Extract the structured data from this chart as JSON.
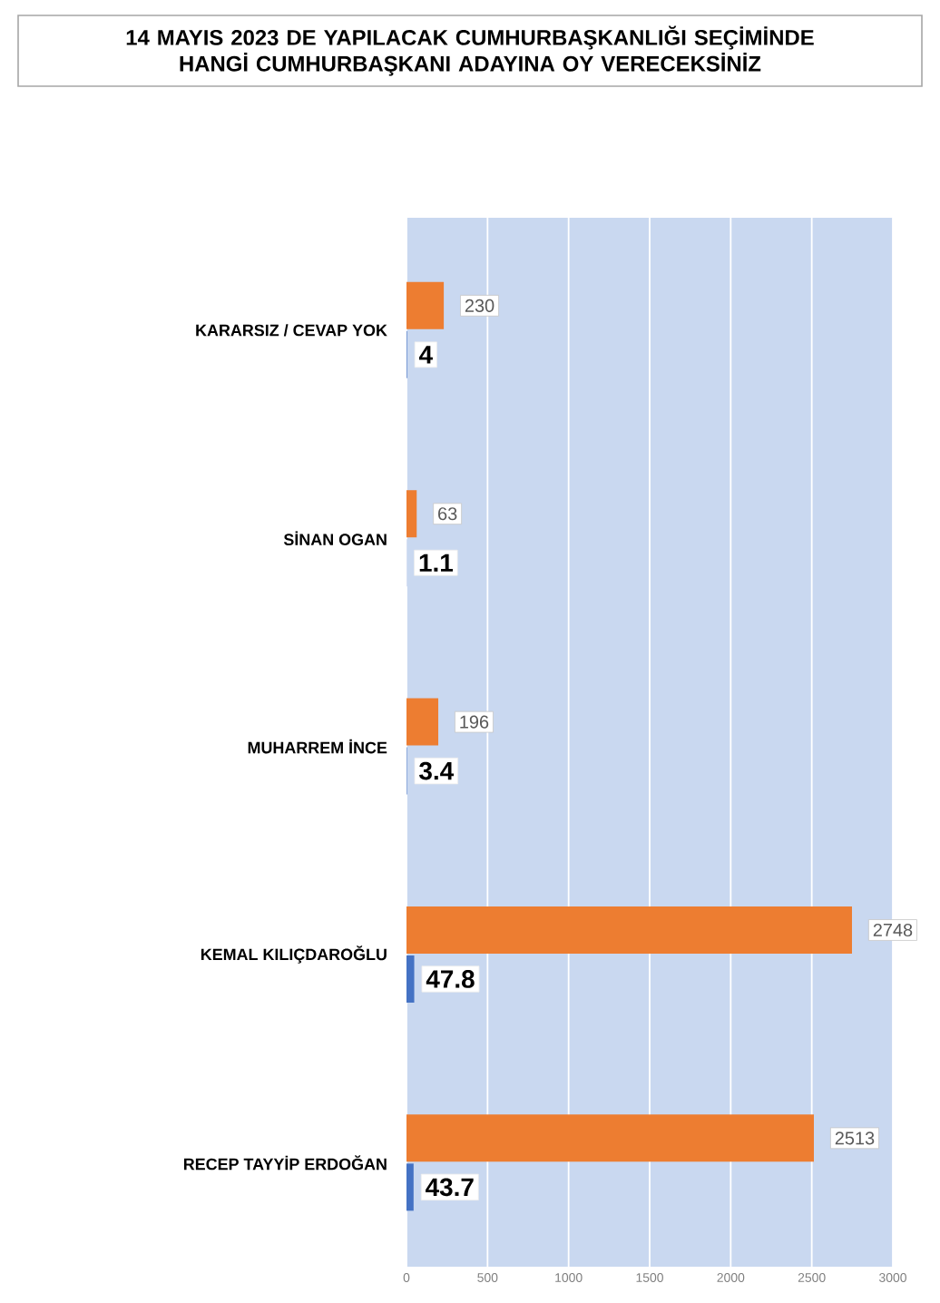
{
  "chart_data": {
    "type": "bar",
    "orientation": "horizontal",
    "title": "14 MAYIS 2023 DE YAPILACAK CUMHURBAŞKANLIĞI SEÇİMİNDE HANGİ CUMHURBAŞKANI ADAYINA OY VERECEKSİNİZ",
    "categories": [
      "KARARSIZ / CEVAP YOK",
      "SİNAN OGAN",
      "MUHARREM İNCE",
      "KEMAL KILIÇDAROĞLU",
      "RECEP TAYYİP ERDOĞAN"
    ],
    "series": [
      {
        "color": "#ed7d31",
        "values": [
          230,
          63,
          196,
          2748,
          2513
        ]
      },
      {
        "color": "#4472c4",
        "values": [
          4,
          1.1,
          3.4,
          47.8,
          43.7
        ]
      }
    ],
    "xlim": [
      0,
      3000
    ],
    "xticks": [
      0,
      500,
      1000,
      1500,
      2000,
      2500,
      3000
    ],
    "grid": "x",
    "data_labels": true
  }
}
